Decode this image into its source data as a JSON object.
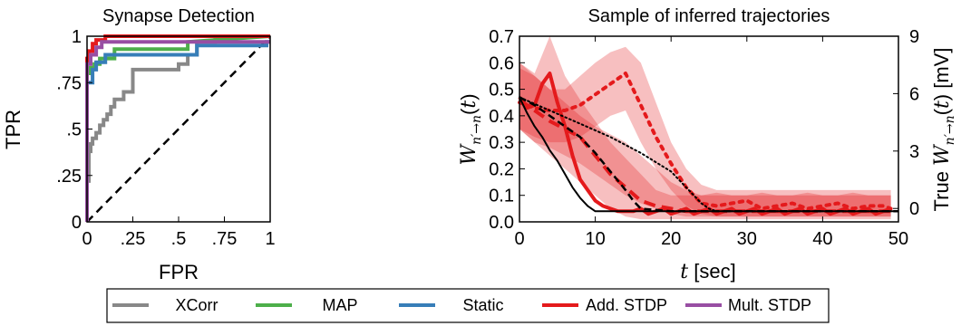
{
  "chart_data": [
    {
      "type": "line",
      "title": "Synapse Detection",
      "xlabel": "FPR",
      "ylabel": "TPR",
      "xlim": [
        0,
        1
      ],
      "ylim": [
        0,
        1
      ],
      "xticks": [
        0,
        0.25,
        0.5,
        0.75,
        1
      ],
      "xtick_labels": [
        "0",
        ".25",
        ".5",
        ".75",
        "1"
      ],
      "yticks": [
        0,
        0.25,
        0.5,
        0.75,
        1
      ],
      "ytick_labels": [
        "0",
        ".25",
        ".5",
        ".75",
        "1"
      ],
      "grid": false,
      "reference_line": {
        "x": [
          0,
          1
        ],
        "y": [
          0,
          1
        ],
        "style": "dashed",
        "color": "#000000"
      },
      "series": [
        {
          "name": "XCorr",
          "color": "#888888",
          "x": [
            0,
            0,
            0.01,
            0.01,
            0.02,
            0.02,
            0.03,
            0.03,
            0.05,
            0.05,
            0.07,
            0.07,
            0.09,
            0.09,
            0.11,
            0.11,
            0.13,
            0.13,
            0.15,
            0.15,
            0.2,
            0.2,
            0.25,
            0.25,
            0.5,
            0.5,
            0.55,
            0.55,
            0.6,
            0.6,
            0.7,
            0.7,
            1
          ],
          "y": [
            0,
            0.22,
            0.22,
            0.38,
            0.38,
            0.42,
            0.42,
            0.45,
            0.45,
            0.48,
            0.48,
            0.52,
            0.52,
            0.55,
            0.55,
            0.58,
            0.58,
            0.62,
            0.62,
            0.66,
            0.66,
            0.7,
            0.7,
            0.82,
            0.82,
            0.85,
            0.85,
            0.9,
            0.9,
            0.97,
            0.97,
            1,
            1
          ]
        },
        {
          "name": "MAP",
          "color": "#4daf4a",
          "x": [
            0,
            0,
            0.02,
            0.02,
            0.04,
            0.04,
            0.07,
            0.07,
            0.15,
            0.15,
            0.55,
            0.55,
            1
          ],
          "y": [
            0,
            0.8,
            0.8,
            0.83,
            0.83,
            0.85,
            0.85,
            0.88,
            0.88,
            0.93,
            0.93,
            0.97,
            1
          ]
        },
        {
          "name": "Static",
          "color": "#377eb8",
          "x": [
            0,
            0,
            0.03,
            0.03,
            0.05,
            0.05,
            0.1,
            0.1,
            0.6,
            0.6,
            0.98,
            0.98,
            1
          ],
          "y": [
            0,
            0.75,
            0.75,
            0.82,
            0.82,
            0.86,
            0.86,
            0.9,
            0.9,
            0.95,
            0.95,
            0.97,
            0.97
          ]
        },
        {
          "name": "Add. STDP",
          "color": "#e41a1c",
          "x": [
            0,
            0,
            0.01,
            0.01,
            0.03,
            0.03,
            0.05,
            0.05,
            0.1,
            0.1,
            0.15,
            0.15,
            1
          ],
          "y": [
            0,
            0.88,
            0.88,
            0.92,
            0.92,
            0.96,
            0.96,
            0.98,
            0.98,
            1,
            1,
            1,
            1
          ]
        },
        {
          "name": "Mult. STDP",
          "color": "#984ea3",
          "x": [
            0,
            0,
            0.02,
            0.02,
            0.05,
            0.05,
            0.08,
            0.08,
            1
          ],
          "y": [
            0,
            0.85,
            0.85,
            0.9,
            0.9,
            0.94,
            0.94,
            0.97,
            0.97
          ]
        }
      ]
    },
    {
      "type": "line",
      "title": "Sample of inferred trajectories",
      "xlabel": "t [sec]",
      "ylabel": "W_{n'→n}(t)",
      "ylabel_right": "True W_{n'→n}(t) [mV]",
      "xlim": [
        0,
        50
      ],
      "ylim": [
        0,
        0.7
      ],
      "ylim_right": [
        -0.7,
        9
      ],
      "xticks": [
        0,
        10,
        20,
        30,
        40,
        50
      ],
      "yticks": [
        0.0,
        0.1,
        0.2,
        0.3,
        0.4,
        0.5,
        0.6,
        0.7
      ],
      "ytick_labels": [
        "0.0",
        "0.1",
        "0.2",
        "0.3",
        "0.4",
        "0.5",
        "0.6",
        "0.7"
      ],
      "yticks_right": [
        0,
        3,
        6,
        9
      ],
      "grid": false,
      "bands": [
        {
          "color": "#e41a1c",
          "opacity": 0.28,
          "x": [
            0,
            2,
            4,
            6,
            8,
            10,
            12,
            14,
            16,
            18,
            20,
            22,
            24,
            26,
            28,
            30,
            32,
            34,
            36,
            38,
            40,
            42,
            44,
            46,
            48,
            49
          ],
          "lower": [
            0.35,
            0.3,
            0.25,
            0.2,
            0.15,
            0.1,
            0.05,
            0.02,
            0.01,
            0.01,
            0.01,
            0.01,
            0.01,
            0.01,
            0.01,
            0.01,
            0.01,
            0.01,
            0.01,
            0.01,
            0.01,
            0.01,
            0.01,
            0.01,
            0.01,
            0.01
          ],
          "upper": [
            0.6,
            0.56,
            0.7,
            0.55,
            0.46,
            0.38,
            0.3,
            0.24,
            0.18,
            0.12,
            0.1,
            0.1,
            0.1,
            0.11,
            0.1,
            0.1,
            0.11,
            0.1,
            0.1,
            0.11,
            0.1,
            0.1,
            0.11,
            0.1,
            0.1,
            0.1
          ]
        },
        {
          "color": "#e41a1c",
          "opacity": 0.28,
          "x": [
            0,
            2,
            4,
            6,
            8,
            10,
            12,
            14,
            16,
            18,
            20,
            22,
            24,
            26,
            28,
            30,
            32,
            34,
            36,
            38,
            40,
            42,
            44,
            46,
            48,
            49
          ],
          "lower": [
            0.35,
            0.3,
            0.28,
            0.25,
            0.22,
            0.18,
            0.14,
            0.1,
            0.07,
            0.05,
            0.03,
            0.02,
            0.02,
            0.02,
            0.02,
            0.02,
            0.02,
            0.02,
            0.02,
            0.02,
            0.02,
            0.02,
            0.02,
            0.02,
            0.02,
            0.02
          ],
          "upper": [
            0.6,
            0.55,
            0.5,
            0.45,
            0.4,
            0.36,
            0.33,
            0.3,
            0.25,
            0.2,
            0.15,
            0.12,
            0.1,
            0.1,
            0.1,
            0.1,
            0.1,
            0.1,
            0.1,
            0.1,
            0.1,
            0.1,
            0.1,
            0.1,
            0.1,
            0.1
          ]
        },
        {
          "color": "#e41a1c",
          "opacity": 0.28,
          "x": [
            0,
            2,
            4,
            6,
            8,
            10,
            12,
            14,
            16,
            18,
            20,
            22,
            24,
            26,
            28,
            30,
            32,
            34,
            36,
            38,
            40,
            42,
            44,
            46,
            48,
            49
          ],
          "lower": [
            0.35,
            0.32,
            0.3,
            0.3,
            0.32,
            0.36,
            0.4,
            0.42,
            0.3,
            0.2,
            0.12,
            0.06,
            0.03,
            0.02,
            0.02,
            0.02,
            0.02,
            0.02,
            0.02,
            0.02,
            0.02,
            0.02,
            0.02,
            0.02,
            0.02,
            0.02
          ],
          "upper": [
            0.58,
            0.55,
            0.5,
            0.5,
            0.55,
            0.6,
            0.64,
            0.66,
            0.6,
            0.45,
            0.3,
            0.2,
            0.14,
            0.12,
            0.12,
            0.12,
            0.12,
            0.12,
            0.12,
            0.12,
            0.12,
            0.12,
            0.12,
            0.12,
            0.12,
            0.12
          ]
        }
      ],
      "series": [
        {
          "role": "inferred",
          "color": "#e41a1c",
          "style": "solid",
          "width": 4,
          "x": [
            0,
            1,
            2,
            3,
            4,
            5,
            6,
            7,
            8,
            9,
            10,
            11,
            12,
            13,
            14,
            15,
            16,
            17,
            18,
            19,
            20,
            21,
            22,
            23,
            24,
            25,
            26,
            27,
            28,
            29,
            30,
            31,
            32,
            33,
            34,
            35,
            36,
            37,
            38,
            39,
            40,
            41,
            42,
            43,
            44,
            45,
            46,
            47,
            48,
            49
          ],
          "y": [
            0.47,
            0.43,
            0.44,
            0.52,
            0.56,
            0.45,
            0.36,
            0.25,
            0.16,
            0.12,
            0.08,
            0.06,
            0.05,
            0.04,
            0.04,
            0.04,
            0.05,
            0.03,
            0.04,
            0.05,
            0.03,
            0.04,
            0.05,
            0.03,
            0.04,
            0.05,
            0.03,
            0.04,
            0.05,
            0.03,
            0.04,
            0.05,
            0.03,
            0.04,
            0.05,
            0.03,
            0.04,
            0.05,
            0.03,
            0.04,
            0.05,
            0.03,
            0.04,
            0.05,
            0.03,
            0.04,
            0.05,
            0.03,
            0.04,
            0.05
          ]
        },
        {
          "role": "inferred",
          "color": "#e41a1c",
          "style": "dashed",
          "width": 4,
          "x": [
            0,
            2,
            4,
            6,
            8,
            10,
            12,
            14,
            16,
            18,
            20,
            22,
            24,
            26,
            28,
            30,
            32,
            34,
            36,
            38,
            40,
            42,
            44,
            46,
            48,
            49
          ],
          "y": [
            0.46,
            0.42,
            0.38,
            0.35,
            0.32,
            0.25,
            0.18,
            0.13,
            0.08,
            0.06,
            0.05,
            0.04,
            0.04,
            0.04,
            0.04,
            0.04,
            0.04,
            0.04,
            0.04,
            0.04,
            0.04,
            0.04,
            0.04,
            0.04,
            0.04,
            0.04
          ]
        },
        {
          "role": "inferred",
          "color": "#e41a1c",
          "style": "dotted",
          "width": 4,
          "x": [
            0,
            2,
            4,
            6,
            8,
            10,
            12,
            14,
            16,
            18,
            20,
            22,
            24,
            26,
            28,
            30,
            32,
            34,
            36,
            38,
            40,
            42,
            44,
            46,
            48,
            49
          ],
          "y": [
            0.45,
            0.43,
            0.42,
            0.42,
            0.44,
            0.48,
            0.52,
            0.56,
            0.44,
            0.32,
            0.22,
            0.13,
            0.07,
            0.06,
            0.07,
            0.08,
            0.05,
            0.06,
            0.07,
            0.05,
            0.06,
            0.07,
            0.05,
            0.06,
            0.06,
            0.05
          ]
        },
        {
          "role": "true",
          "color": "#000000",
          "style": "solid",
          "width": 2,
          "x": [
            0,
            1,
            2,
            3,
            4,
            5,
            6,
            7,
            8,
            9,
            10,
            11,
            12,
            16,
            20,
            25,
            30,
            35,
            40,
            45,
            50
          ],
          "y": [
            0.47,
            0.41,
            0.36,
            0.32,
            0.27,
            0.23,
            0.18,
            0.13,
            0.09,
            0.06,
            0.04,
            0.04,
            0.04,
            0.04,
            0.04,
            0.04,
            0.04,
            0.04,
            0.04,
            0.04,
            0.04
          ]
        },
        {
          "role": "true",
          "color": "#000000",
          "style": "dashed",
          "width": 2.5,
          "x": [
            0,
            2,
            4,
            6,
            8,
            10,
            12,
            14,
            15,
            16,
            20,
            25,
            30,
            40,
            50
          ],
          "y": [
            0.47,
            0.44,
            0.4,
            0.36,
            0.32,
            0.26,
            0.19,
            0.12,
            0.08,
            0.05,
            0.04,
            0.04,
            0.04,
            0.04,
            0.04
          ]
        },
        {
          "role": "true",
          "color": "#000000",
          "style": "dotted",
          "width": 2,
          "x": [
            0,
            4,
            8,
            12,
            16,
            20,
            22,
            24,
            25,
            26,
            30,
            40,
            50
          ],
          "y": [
            0.47,
            0.42,
            0.37,
            0.32,
            0.26,
            0.19,
            0.13,
            0.07,
            0.05,
            0.04,
            0.04,
            0.04,
            0.04
          ]
        }
      ]
    }
  ],
  "legend": {
    "placement": "bottom-center",
    "entries": [
      {
        "name": "XCorr",
        "color": "#888888"
      },
      {
        "name": "MAP",
        "color": "#4daf4a"
      },
      {
        "name": "Static",
        "color": "#377eb8"
      },
      {
        "name": "Add. STDP",
        "color": "#e41a1c"
      },
      {
        "name": "Mult. STDP",
        "color": "#984ea3"
      }
    ]
  }
}
